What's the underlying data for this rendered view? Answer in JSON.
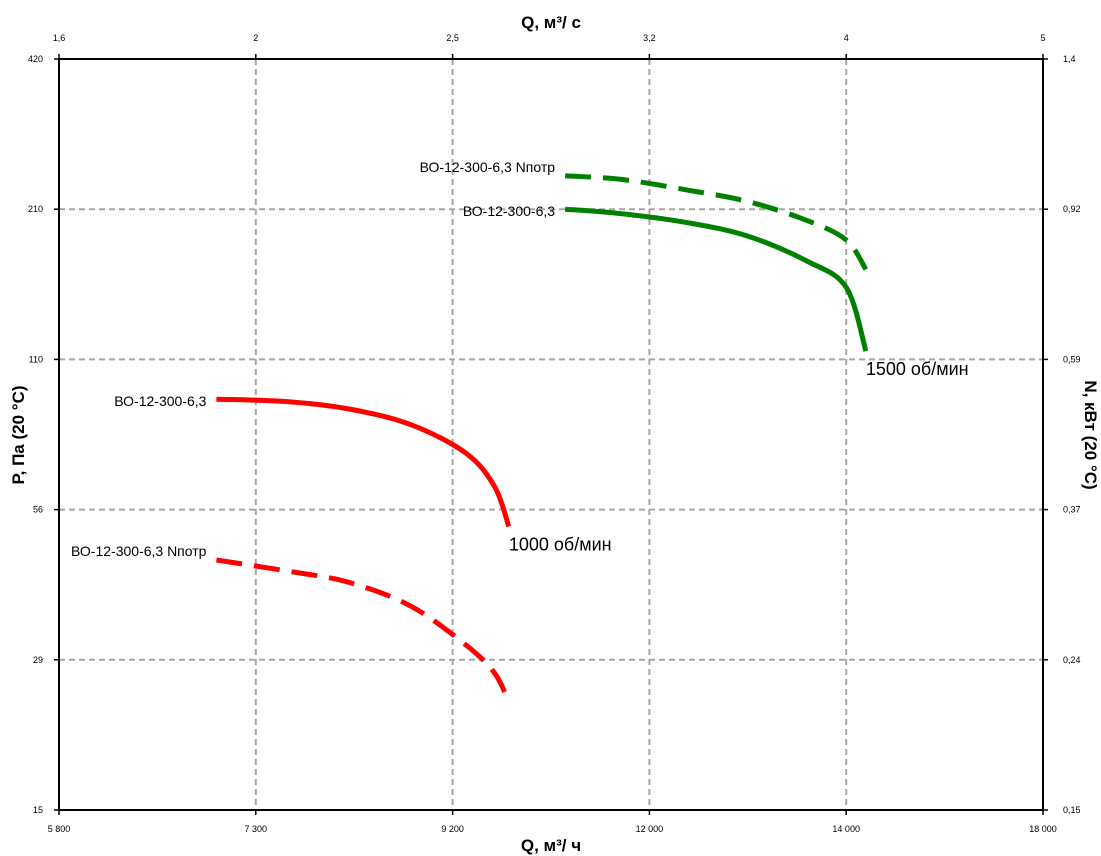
{
  "chart_data": {
    "type": "line",
    "axes": {
      "x_bottom": {
        "label": "Q, м³/ ч",
        "ticks": [
          "5 800",
          "7 300",
          "9 200",
          "12 000",
          "14 000",
          "18 000"
        ]
      },
      "x_top": {
        "label": "Q, м³/ с",
        "ticks": [
          "1,6",
          "2",
          "2,5",
          "3,2",
          "4",
          "5"
        ]
      },
      "y_left": {
        "label": "P, Па (20 °C)",
        "ticks": [
          "420",
          "210",
          "110",
          "56",
          "29",
          "15"
        ],
        "scale": "log"
      },
      "y_right": {
        "label": "N, кВт (20 °C)",
        "ticks": [
          "1,4",
          "0,92",
          "0,59",
          "0,37",
          "0,24",
          "0,15"
        ],
        "scale": "log"
      },
      "grid": true
    },
    "series": [
      {
        "name": "ВО-12-300-6,3",
        "speed_label": "1000 об/мин",
        "kind": "pressure",
        "color": "#ff0000",
        "style": "solid",
        "points": [
          [
            7000,
            92
          ],
          [
            7600,
            91
          ],
          [
            8200,
            88
          ],
          [
            8800,
            82
          ],
          [
            9400,
            72
          ],
          [
            9800,
            62
          ],
          [
            10000,
            52
          ]
        ]
      },
      {
        "name": "ВО-12-300-6,3 Nпотр",
        "kind": "power",
        "color": "#ff0000",
        "style": "dashed",
        "points": [
          [
            7000,
            0.32
          ],
          [
            7600,
            0.31
          ],
          [
            8200,
            0.3
          ],
          [
            8800,
            0.28
          ],
          [
            9400,
            0.25
          ],
          [
            9800,
            0.23
          ],
          [
            10000,
            0.21
          ]
        ]
      },
      {
        "name": "ВО-12-300-6,3",
        "speed_label": "1500 об/мин",
        "kind": "pressure",
        "color": "#008000",
        "style": "solid",
        "points": [
          [
            10800,
            210
          ],
          [
            11600,
            206
          ],
          [
            12400,
            198
          ],
          [
            13000,
            187
          ],
          [
            13600,
            168
          ],
          [
            14000,
            150
          ],
          [
            14400,
            114
          ]
        ]
      },
      {
        "name": "ВО-12-300-6,3 Nпотр",
        "kind": "power",
        "color": "#008000",
        "style": "dashed",
        "points": [
          [
            10800,
            1.01
          ],
          [
            11600,
            1.0
          ],
          [
            12400,
            0.97
          ],
          [
            13000,
            0.94
          ],
          [
            13600,
            0.89
          ],
          [
            14000,
            0.84
          ],
          [
            14400,
            0.77
          ]
        ]
      }
    ]
  }
}
